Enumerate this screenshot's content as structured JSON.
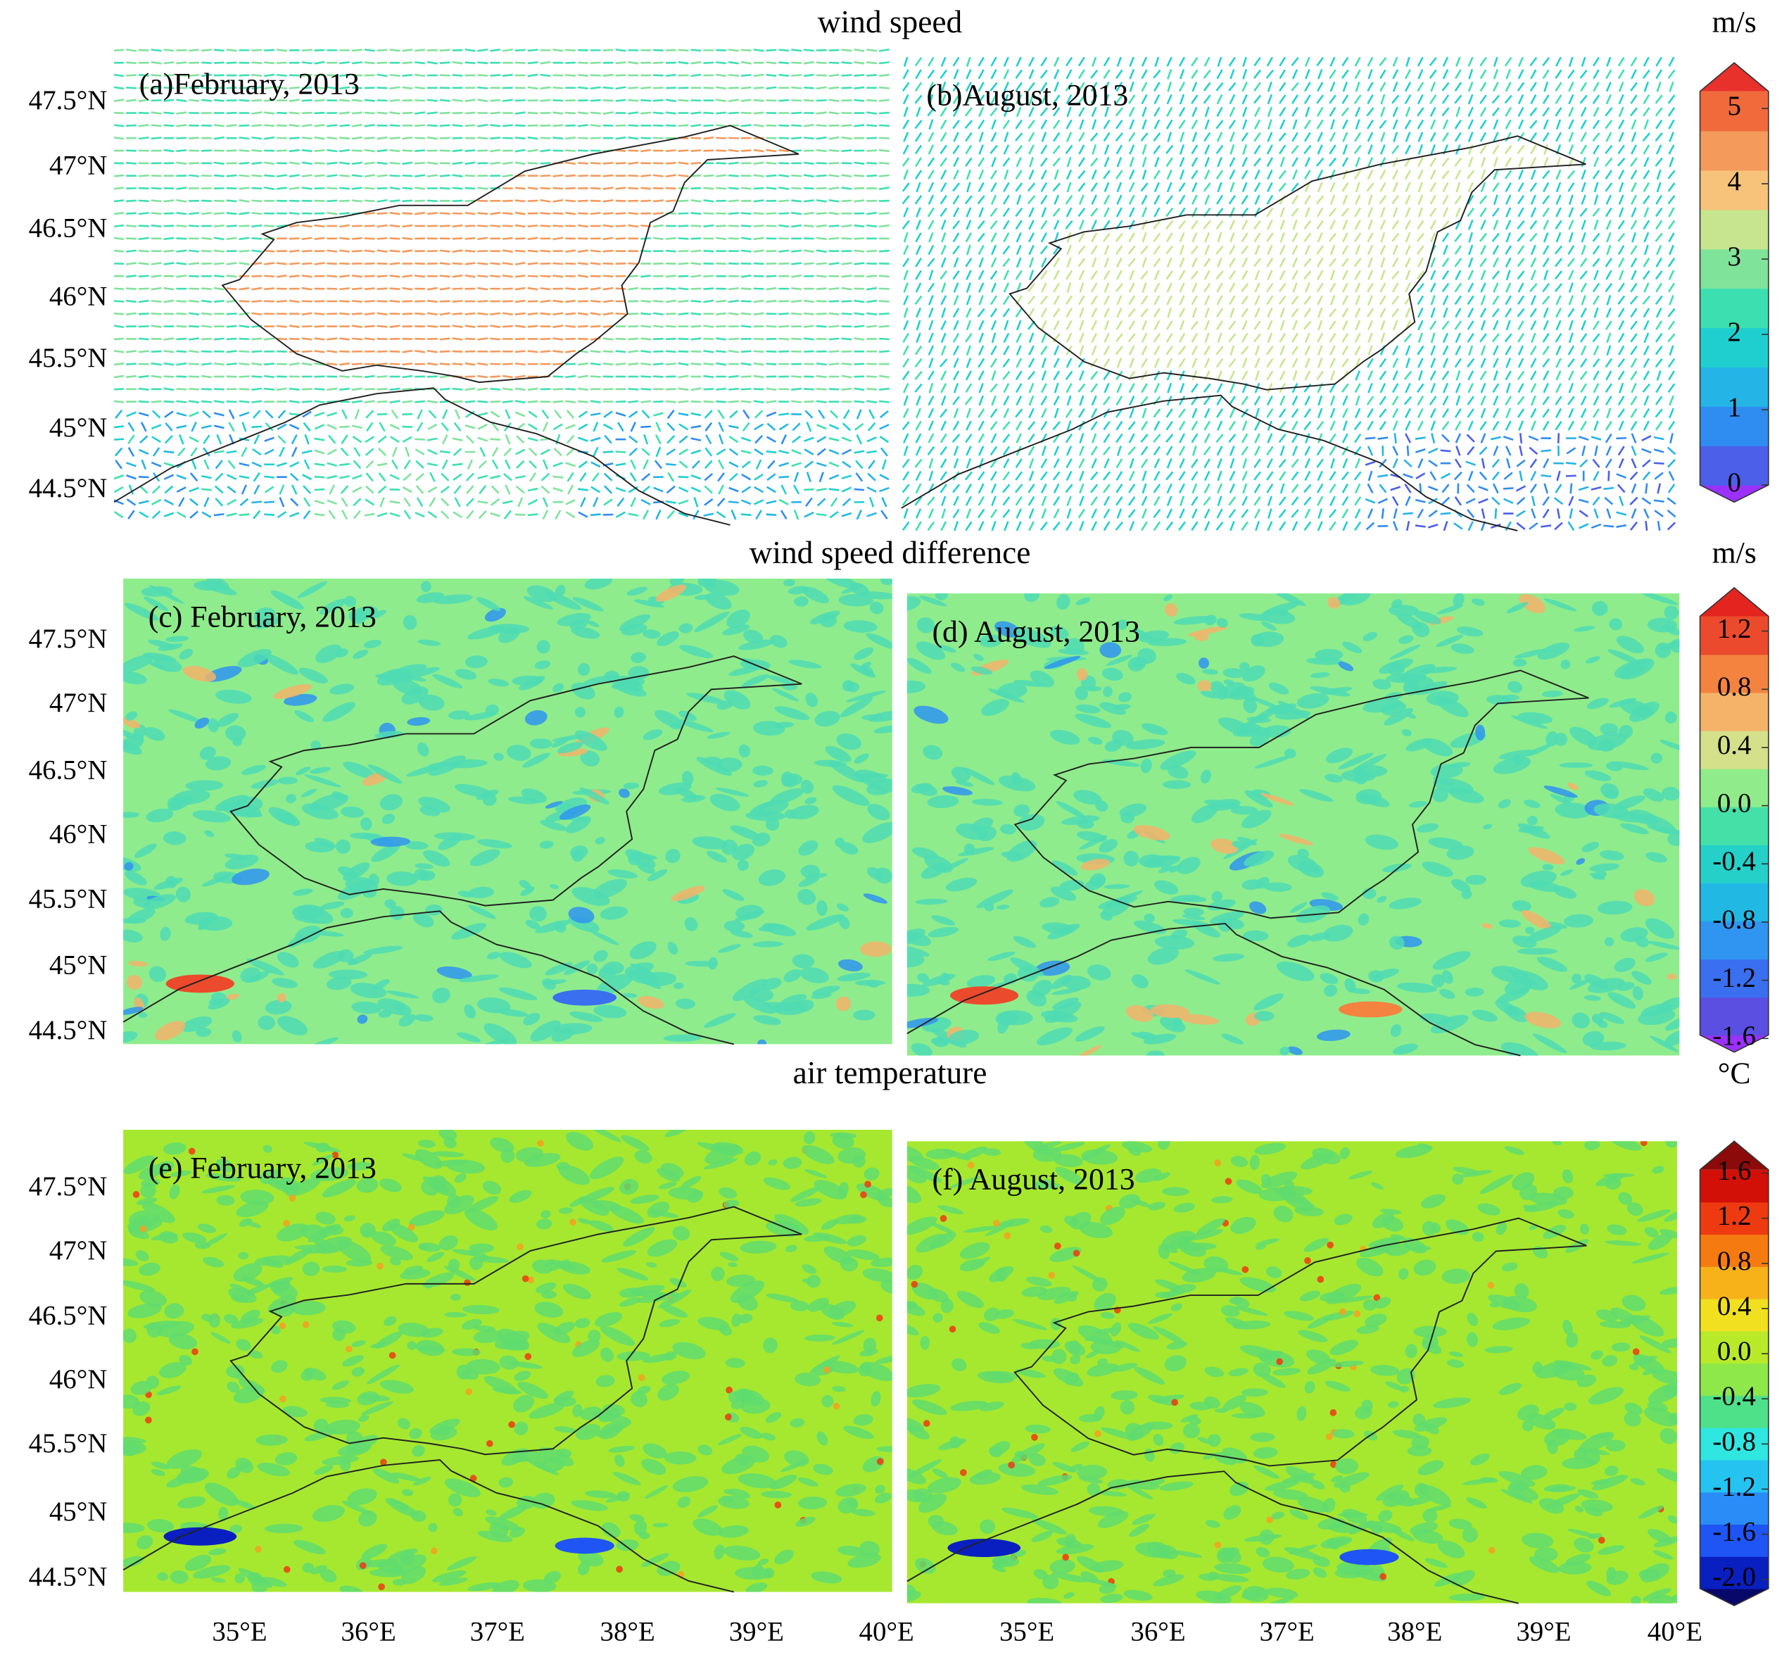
{
  "rows": [
    {
      "title": "wind speed",
      "unit": "m/s",
      "panels": [
        {
          "label": "(a)February, 2013"
        },
        {
          "label": "(b)August, 2013"
        }
      ],
      "colorbar": {
        "lim": [
          0,
          5
        ],
        "ticks": [
          0,
          1,
          2,
          3,
          4,
          5
        ],
        "colors": [
          "#9b30ff",
          "#4b5fe8",
          "#2f8cf0",
          "#24b4e6",
          "#1fcfd0",
          "#3ce0b0",
          "#7fe39a",
          "#c7e58e",
          "#f7c27a",
          "#f49a5a",
          "#f06a3c",
          "#e8312a"
        ]
      }
    },
    {
      "title": "wind speed difference",
      "unit": "m/s",
      "panels": [
        {
          "label": "(c) February, 2013"
        },
        {
          "label": "(d) August, 2013"
        }
      ],
      "colorbar": {
        "lim": [
          -1.6,
          1.2
        ],
        "ticks": [
          -1.6,
          -1.2,
          -0.8,
          -0.4,
          {
            "value": 0,
            "label": "0.0"
          },
          0.4,
          0.8,
          1.2
        ],
        "colors": [
          "#9b30ff",
          "#5a4fe0",
          "#3a6ff0",
          "#2f95f0",
          "#22b8e4",
          "#25d0c8",
          "#45e0a8",
          "#90ec8a",
          "#d4e08a",
          "#f5b36a",
          "#f3833f",
          "#ec4a2c",
          "#e3241f"
        ]
      }
    },
    {
      "title": "air temperature",
      "unit": "°C",
      "panels": [
        {
          "label": "(e) February, 2013"
        },
        {
          "label": "(f)  August, 2013"
        }
      ],
      "colorbar": {
        "lim": [
          -2.0,
          1.6
        ],
        "ticks": [
          {
            "value": -2,
            "label": "-2.0"
          },
          -1.6,
          -1.2,
          -0.8,
          -0.4,
          {
            "value": 0,
            "label": "0.0"
          },
          0.4,
          0.8,
          1.2,
          1.6
        ],
        "colors": [
          "#08086b",
          "#0a1fc0",
          "#1f55f5",
          "#2a8cf7",
          "#25c4f0",
          "#2fe6e0",
          "#4fe08a",
          "#8ee84a",
          "#b9ea2a",
          "#f0e020",
          "#f7b21a",
          "#f57a10",
          "#ee3a10",
          "#d21008",
          "#8c0a0a"
        ]
      }
    }
  ],
  "lat_labels": [
    "47.5°N",
    "47°N",
    "46.5°N",
    "46°N",
    "45.5°N",
    "45°N",
    "44.5°N"
  ],
  "lon_labels": [
    "35°E",
    "36°E",
    "37°E",
    "38°E",
    "39°E",
    "40°E"
  ]
}
